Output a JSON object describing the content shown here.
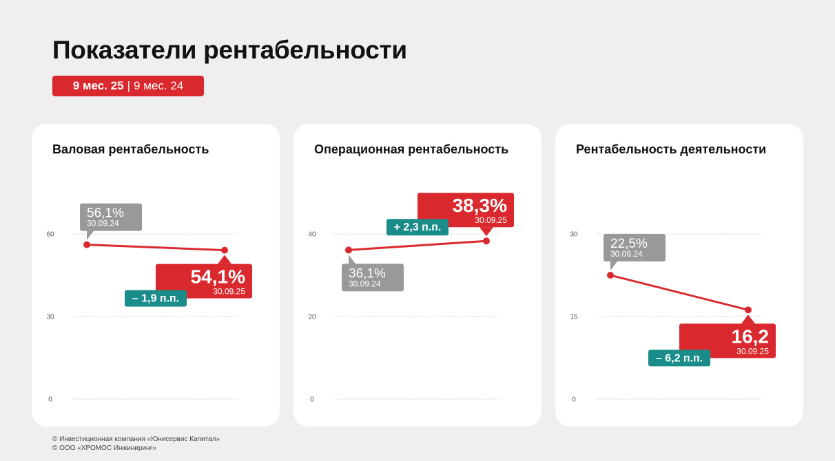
{
  "header": {
    "title": "Показатели рентабельности",
    "period_current": "9 мес. 25",
    "period_separator": "|",
    "period_previous": "9 мес. 24"
  },
  "footer": {
    "line1": "© Инвестиционная компания «Юнисервис Капитал»",
    "line2": "© ООО «ХРОМОС Инжиниринг»"
  },
  "colors": {
    "current": "#d9292e",
    "previous": "#999999",
    "diff": "#1a8c8a"
  },
  "chart_data": [
    {
      "type": "line",
      "title": "Валовая рентабельность",
      "ylim": [
        0,
        60
      ],
      "yticks": [
        "0",
        "30",
        "60"
      ],
      "ytick_values": [
        0,
        30,
        60
      ],
      "values": [
        56.1,
        54.1
      ],
      "prev_label": "56,1%",
      "prev_date": "30.09.24",
      "curr_label": "54,1%",
      "curr_date": "30.09.25",
      "diff_label": "– 1,9 п.п."
    },
    {
      "type": "line",
      "title": "Операционная рентабельность",
      "ylim": [
        0,
        40
      ],
      "yticks": [
        "0",
        "20",
        "40"
      ],
      "ytick_values": [
        0,
        20,
        40
      ],
      "values": [
        36.1,
        38.3
      ],
      "prev_label": "36,1%",
      "prev_date": "30.09.24",
      "curr_label": "38,3%",
      "curr_date": "30.09.25",
      "diff_label": "+ 2,3 п.п."
    },
    {
      "type": "line",
      "title": "Рентабельность деятельности",
      "ylim": [
        0,
        30
      ],
      "yticks": [
        "0",
        "15",
        "30"
      ],
      "ytick_values": [
        0,
        15,
        30
      ],
      "values": [
        22.5,
        16.2
      ],
      "prev_label": "22,5%",
      "prev_date": "30.09.24",
      "curr_label": "16,2",
      "curr_date": "30.09.25",
      "diff_label": "– 6,2 п.п."
    }
  ]
}
